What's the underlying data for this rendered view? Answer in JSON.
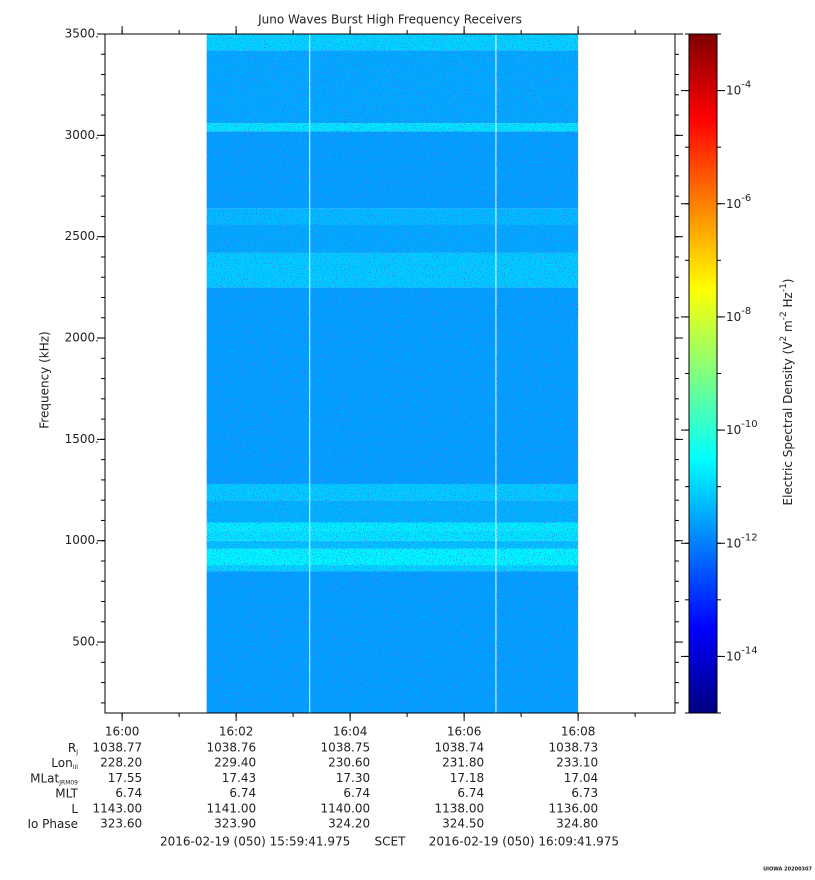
{
  "chart_data": {
    "type": "spectrogram",
    "title": "Juno Waves Burst High Frequency Receivers",
    "ylabel": "Frequency (kHz)",
    "ylim": [
      150,
      3500
    ],
    "yticks": [
      {
        "value": 500,
        "label": "500."
      },
      {
        "value": 1000,
        "label": "1000."
      },
      {
        "value": 1500,
        "label": "1500."
      },
      {
        "value": 2000,
        "label": "2000."
      },
      {
        "value": 2500,
        "label": "2500."
      },
      {
        "value": 3000,
        "label": "3000."
      },
      {
        "value": 3500,
        "label": "3500."
      }
    ],
    "yminor": 100,
    "xlim": [
      "15:59:41.975",
      "16:09:41.975"
    ],
    "xticks": [
      "16:00",
      "16:02",
      "16:04",
      "16:06",
      "16:08"
    ],
    "xminor_seconds": 60,
    "time_segments": [
      [
        "16:01:29",
        "16:03:17"
      ],
      [
        "16:03:18",
        "16:06:33"
      ],
      [
        "16:06:34",
        "16:08:00"
      ]
    ],
    "frequency_edges": [
      150,
      850,
      880,
      960,
      1000,
      1050,
      1090,
      1200,
      1280,
      2250,
      2420,
      2560,
      2640,
      3020,
      3060,
      3420,
      3500
    ],
    "z": [
      2.5e-12,
      1e-11,
      2.5e-11,
      6.3e-12,
      1.6e-11,
      2e-11,
      4e-12,
      8e-12,
      2.5e-12,
      8e-12,
      3.2e-12,
      5e-12,
      2.5e-12,
      1.6e-11,
      3.2e-12,
      1e-11
    ],
    "zlim": [
      1e-15,
      0.001
    ],
    "zscale": "log",
    "colormap": "jet",
    "zticks": [
      {
        "value": 1e-14,
        "label": "10",
        "exp": "-14"
      },
      {
        "value": 1e-12,
        "label": "10",
        "exp": "-12"
      },
      {
        "value": 1e-10,
        "label": "10",
        "exp": "-10"
      },
      {
        "value": 1e-08,
        "label": "10",
        "exp": "-8"
      },
      {
        "value": 1e-06,
        "label": "10",
        "exp": "-6"
      },
      {
        "value": 0.0001,
        "label": "10",
        "exp": "-4"
      }
    ],
    "zlabel": [
      {
        "text": "Electric Spectral Density (V"
      },
      {
        "text": "2",
        "sup": true
      },
      {
        "text": " m"
      },
      {
        "text": "-2",
        "sup": true
      },
      {
        "text": " Hz"
      },
      {
        "text": "-1",
        "sup": true
      },
      {
        "text": ")"
      }
    ],
    "ephemeris": [
      {
        "label": "R",
        "sub": "J",
        "values": [
          "1038.77",
          "1038.76",
          "1038.75",
          "1038.74",
          "1038.73"
        ]
      },
      {
        "label": "Lon",
        "sub": "III",
        "values": [
          "228.20",
          "229.40",
          "230.60",
          "231.80",
          "233.10"
        ]
      },
      {
        "label": "MLat",
        "sub": "JRM09",
        "values": [
          "17.55",
          "17.43",
          "17.30",
          "17.18",
          "17.04"
        ]
      },
      {
        "label": "MLT",
        "values": [
          "6.74",
          "6.74",
          "6.74",
          "6.74",
          "6.73"
        ]
      },
      {
        "label": "L",
        "values": [
          "1143.00",
          "1141.00",
          "1140.00",
          "1138.00",
          "1136.00"
        ]
      },
      {
        "label": "Io Phase",
        "values": [
          "323.60",
          "323.90",
          "324.20",
          "324.50",
          "324.80"
        ]
      }
    ],
    "footer": [
      "2016-02-19 (050) 15:59:41.975",
      "SCET",
      "2016-02-19 (050) 16:09:41.975"
    ],
    "credit": "UIOWA 20200307"
  }
}
